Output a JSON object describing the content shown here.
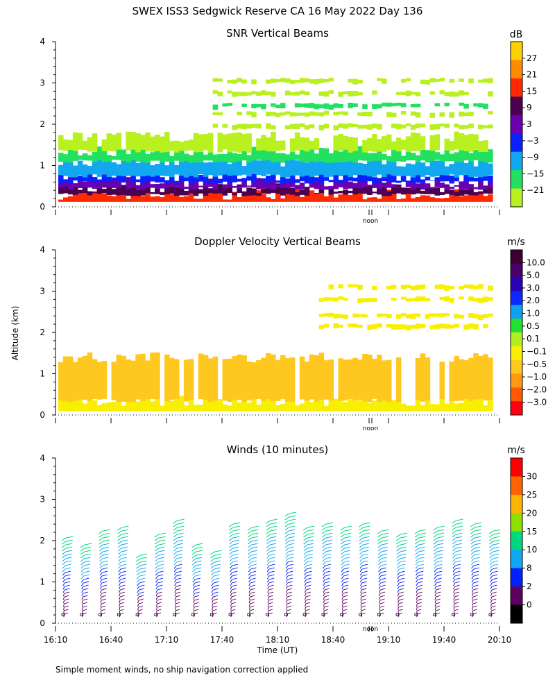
{
  "page_title": "SWEX ISS3 Sedgwick Reserve CA  16 May 2022 Day 136",
  "y_axis_label": "Altitude (km)",
  "x_axis_label": "Time (UT)",
  "footnote": "Simple moment winds, no ship navigation correction applied",
  "noon_label": "noon",
  "chart_data": [
    {
      "type": "heatmap",
      "title": "SNR Vertical Beams",
      "colorbar_unit": "dB",
      "colorbar_ticks": [
        "27",
        "21",
        "15",
        "9",
        "3",
        "−3",
        "−9",
        "−15",
        "−21"
      ],
      "colorbar_colors": [
        "#ffd000",
        "#ff8c00",
        "#ff2a00",
        "#4a004e",
        "#6a00b0",
        "#0a20ff",
        "#12a8f0",
        "#22e060",
        "#b8f020"
      ],
      "ylim": [
        0,
        4
      ],
      "yticks": [
        "0",
        "1",
        "2",
        "3",
        "4"
      ],
      "xticks": [],
      "layers": [
        {
          "from": 0.12,
          "to": 0.3,
          "color": "#ff2a00"
        },
        {
          "from": 0.3,
          "to": 0.45,
          "color": "#4a004e"
        },
        {
          "from": 0.45,
          "to": 0.6,
          "color": "#6a00b0"
        },
        {
          "from": 0.6,
          "to": 0.75,
          "color": "#0a20ff"
        },
        {
          "from": 0.75,
          "to": 1.1,
          "color": "#12a8f0"
        },
        {
          "from": 1.1,
          "to": 1.35,
          "color": "#22e060"
        },
        {
          "from": 1.35,
          "to": 1.7,
          "color": "#b8f020"
        }
      ]
    },
    {
      "type": "heatmap",
      "title": "Doppler Velocity Vertical Beams",
      "colorbar_unit": "m/s",
      "colorbar_ticks": [
        "10.0",
        "5.0",
        "3.0",
        "2.0",
        "1.0",
        "0.5",
        "0.1",
        "−0.1",
        "−0.5",
        "−1.0",
        "−2.0",
        "−3.0"
      ],
      "colorbar_colors": [
        "#3a0030",
        "#4a006a",
        "#2a00b8",
        "#0a28ff",
        "#10a0f0",
        "#20e030",
        "#b0f020",
        "#f8f000",
        "#ffc820",
        "#ff9a10",
        "#ff5a00",
        "#ff0010"
      ],
      "ylim": [
        0,
        4
      ],
      "yticks": [
        "0",
        "1",
        "2",
        "3",
        "4"
      ],
      "xticks": [],
      "layers": [
        {
          "from": 0.1,
          "to": 0.35,
          "color": "#f8f000"
        },
        {
          "from": 0.35,
          "to": 1.4,
          "color": "#ffc820"
        }
      ]
    },
    {
      "type": "scatter",
      "title": "Winds (10 minutes)",
      "colorbar_unit": "m/s",
      "colorbar_ticks": [
        "30",
        "25",
        "20",
        "15",
        "10",
        "8",
        "2",
        "0"
      ],
      "colorbar_colors": [
        "#ff0000",
        "#ff6400",
        "#ffb400",
        "#8ce000",
        "#00d880",
        "#10a8f0",
        "#0020ff",
        "#5a0060",
        "#000000"
      ],
      "ylim": [
        0,
        4
      ],
      "yticks": [
        "0",
        "1",
        "2",
        "3",
        "4"
      ],
      "xticks": [
        "16:10",
        "16:40",
        "17:10",
        "17:40",
        "18:10",
        "18:40",
        "19:10",
        "19:40",
        "20:10"
      ],
      "xlabel": "Time (UT)",
      "profile_top_km": [
        2.0,
        1.9,
        2.2,
        2.3,
        1.6,
        2.1,
        2.5,
        1.9,
        1.7,
        2.4,
        2.3,
        2.5,
        2.6,
        2.3,
        2.4,
        2.3,
        2.4,
        2.2,
        2.1,
        2.2,
        2.3,
        2.5,
        2.4,
        2.2
      ]
    }
  ]
}
